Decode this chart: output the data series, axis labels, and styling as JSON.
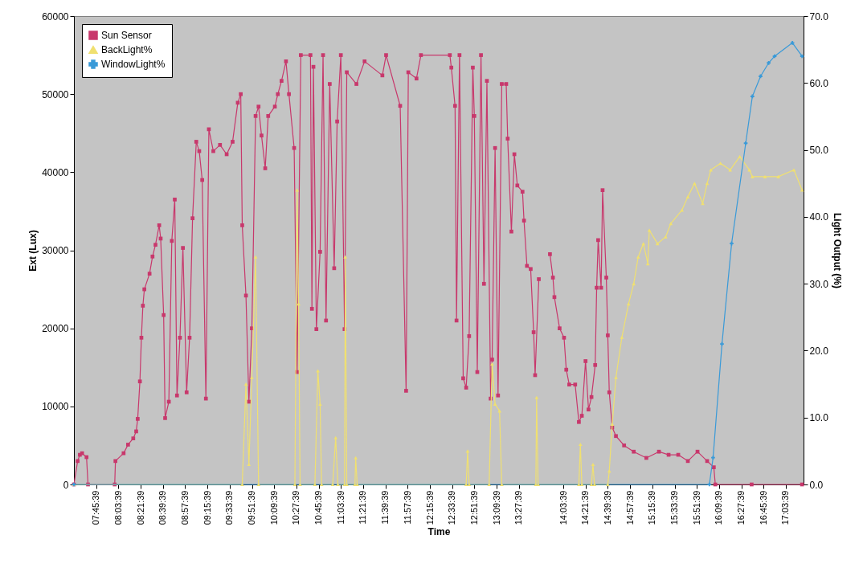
{
  "chart_data": {
    "type": "line",
    "xlabel": "Time",
    "ylabel": "Ext (Lux)",
    "y2label": "Light Output (%)",
    "legend": "top left",
    "grid": false,
    "xlim": [
      7.46,
      17.3
    ],
    "xticks": [
      {
        "value": 7.7608,
        "label": "07:45:39"
      },
      {
        "value": 8.0608,
        "label": "08:03:39"
      },
      {
        "value": 8.3608,
        "label": "08:21:39"
      },
      {
        "value": 8.6608,
        "label": "08:39:39"
      },
      {
        "value": 8.9608,
        "label": "08:57:39"
      },
      {
        "value": 9.2608,
        "label": "09:15:39"
      },
      {
        "value": 9.5608,
        "label": "09:33:39"
      },
      {
        "value": 9.8608,
        "label": "09:51:39"
      },
      {
        "value": 10.1608,
        "label": "10:09:39"
      },
      {
        "value": 10.4608,
        "label": "10:27:39"
      },
      {
        "value": 10.7608,
        "label": "10:45:39"
      },
      {
        "value": 11.0608,
        "label": "11:03:39"
      },
      {
        "value": 11.3608,
        "label": "11:21:39"
      },
      {
        "value": 11.6608,
        "label": "11:39:39"
      },
      {
        "value": 11.9608,
        "label": "11:57:39"
      },
      {
        "value": 12.2608,
        "label": "12:15:39"
      },
      {
        "value": 12.5608,
        "label": "12:33:39"
      },
      {
        "value": 12.8608,
        "label": "12:51:39"
      },
      {
        "value": 13.1608,
        "label": "13:09:39"
      },
      {
        "value": 13.4608,
        "label": "13:27:39"
      },
      {
        "value": 14.0608,
        "label": "14:03:39"
      },
      {
        "value": 14.3608,
        "label": "14:21:39"
      },
      {
        "value": 14.6608,
        "label": "14:39:39"
      },
      {
        "value": 14.9608,
        "label": "14:57:39"
      },
      {
        "value": 15.2608,
        "label": "15:15:39"
      },
      {
        "value": 15.5608,
        "label": "15:33:39"
      },
      {
        "value": 15.8608,
        "label": "15:51:39"
      },
      {
        "value": 16.1608,
        "label": "16:09:39"
      },
      {
        "value": 16.4608,
        "label": "16:27:39"
      },
      {
        "value": 16.7608,
        "label": "16:45:39"
      },
      {
        "value": 17.0608,
        "label": "17:03:39"
      }
    ],
    "ylim": [
      0,
      60000
    ],
    "yticks": [
      0,
      10000,
      20000,
      30000,
      40000,
      50000,
      60000
    ],
    "y2lim": [
      0,
      70
    ],
    "y2ticks": [
      {
        "value": 0,
        "label": "0.0"
      },
      {
        "value": 10,
        "label": "10.0"
      },
      {
        "value": 20,
        "label": "20.0"
      },
      {
        "value": 30,
        "label": "30.0"
      },
      {
        "value": 40,
        "label": "40.0"
      },
      {
        "value": 50,
        "label": "50.0"
      },
      {
        "value": 60,
        "label": "60.0"
      },
      {
        "value": 70,
        "label": "70.0"
      }
    ],
    "series": [
      {
        "name": "Sun Sensor",
        "color": "#c8386c",
        "marker": "square",
        "x": [
          7.46,
          7.51,
          7.54,
          7.57,
          7.63,
          7.65,
          8.01,
          8.02,
          8.13,
          8.19,
          8.26,
          8.3,
          8.32,
          8.35,
          8.37,
          8.39,
          8.41,
          8.48,
          8.52,
          8.56,
          8.61,
          8.63,
          8.67,
          8.69,
          8.74,
          8.78,
          8.82,
          8.85,
          8.89,
          8.93,
          8.98,
          9.02,
          9.06,
          9.11,
          9.15,
          9.19,
          9.24,
          9.28,
          9.34,
          9.43,
          9.52,
          9.6,
          9.67,
          9.71,
          9.73,
          9.78,
          9.82,
          9.86,
          9.91,
          9.95,
          9.99,
          10.04,
          10.08,
          10.17,
          10.21,
          10.26,
          10.32,
          10.36,
          10.43,
          10.47,
          10.52,
          10.65,
          10.67,
          10.69,
          10.73,
          10.78,
          10.82,
          10.86,
          10.91,
          10.97,
          11.01,
          11.06,
          11.11,
          11.14,
          11.27,
          11.38,
          11.62,
          11.67,
          11.86,
          11.94,
          11.97,
          12.08,
          12.14,
          12.53,
          12.55,
          12.6,
          12.62,
          12.66,
          12.71,
          12.75,
          12.79,
          12.84,
          12.86,
          12.9,
          12.95,
          12.99,
          13.03,
          13.08,
          13.1,
          13.14,
          13.18,
          13.23,
          13.29,
          13.31,
          13.36,
          13.4,
          13.44,
          13.51,
          13.53,
          13.57,
          13.62,
          13.66,
          13.68,
          13.73,
          13.8,
          13.88,
          13.92,
          13.94,
          14.01,
          14.07,
          14.1,
          14.14,
          14.22,
          14.27,
          14.31,
          14.36,
          14.4,
          14.44,
          14.49,
          14.51,
          14.53,
          14.57,
          14.59,
          14.64,
          14.66,
          14.68,
          14.72,
          14.77,
          14.88,
          15.01,
          15.18,
          15.35,
          15.48,
          15.61,
          15.74,
          15.87,
          16.0,
          16.09,
          16.11,
          16.6,
          17.28
        ],
        "values": [
          0,
          3000,
          3800,
          4000,
          3500,
          0,
          0,
          3000,
          4000,
          5100,
          5900,
          6800,
          8400,
          13200,
          18800,
          22900,
          25000,
          27000,
          29200,
          30700,
          33200,
          31500,
          21700,
          8500,
          10600,
          31200,
          36500,
          11400,
          18800,
          30300,
          11800,
          18800,
          34100,
          43900,
          42700,
          39000,
          11000,
          45500,
          42700,
          43500,
          42300,
          43900,
          48900,
          50000,
          33200,
          24200,
          10600,
          20000,
          47200,
          48400,
          44700,
          40500,
          47200,
          48400,
          50000,
          51700,
          54200,
          50000,
          43100,
          14400,
          55000,
          55000,
          22500,
          53500,
          19900,
          29800,
          55000,
          21000,
          51300,
          27700,
          46500,
          55000,
          19900,
          52800,
          51300,
          54200,
          52400,
          55000,
          48500,
          12000,
          52800,
          52000,
          55000,
          55000,
          53400,
          48500,
          21000,
          55000,
          13600,
          12400,
          19000,
          53400,
          47200,
          14400,
          55000,
          25700,
          51700,
          11000,
          16000,
          43100,
          11400,
          51300,
          51300,
          44300,
          32400,
          42300,
          38300,
          37500,
          33800,
          28000,
          27600,
          19500,
          14000,
          26300,
          null,
          29500,
          26500,
          24000,
          20000,
          18800,
          14700,
          12800,
          12800,
          8000,
          8800,
          15800,
          9600,
          11200,
          15300,
          25200,
          31300,
          25200,
          37700,
          26500,
          19100,
          11800,
          7300,
          6200,
          5000,
          4200,
          3400,
          4200,
          3800,
          3800,
          3000,
          4200,
          3000,
          2200,
          0,
          0,
          0
        ]
      },
      {
        "name": "BackLight%",
        "color": "#f0e070",
        "marker": "triangle",
        "axis": "y2",
        "x": [
          7.46,
          9.73,
          9.78,
          9.82,
          9.86,
          9.91,
          9.95,
          10.44,
          10.47,
          10.49,
          10.51,
          10.71,
          10.75,
          10.78,
          10.8,
          10.95,
          10.99,
          11.02,
          11.11,
          11.12,
          11.14,
          11.25,
          11.26,
          11.28,
          12.75,
          12.77,
          12.79,
          13.06,
          13.1,
          13.14,
          13.2,
          13.23,
          13.69,
          13.7,
          13.72,
          14.27,
          14.29,
          14.31,
          14.44,
          14.46,
          14.48,
          14.66,
          14.68,
          14.72,
          14.77,
          14.85,
          14.94,
          15.01,
          15.07,
          15.14,
          15.2,
          15.22,
          15.33,
          15.44,
          15.51,
          15.66,
          15.74,
          15.83,
          15.94,
          16.0,
          16.05,
          16.18,
          16.31,
          16.44,
          16.57,
          16.61,
          16.78,
          16.96,
          17.17,
          17.28
        ],
        "values": [
          0,
          0,
          15,
          3,
          16,
          34,
          0,
          0,
          44,
          27,
          0,
          0,
          17,
          12,
          0,
          0,
          7,
          0,
          0,
          34,
          0,
          0,
          4,
          0,
          0,
          5,
          0,
          0,
          18,
          12,
          11,
          0,
          0,
          13,
          0,
          0,
          6,
          0,
          0,
          3,
          0,
          0,
          2,
          9,
          16,
          22,
          27,
          30,
          34,
          36,
          33,
          38,
          36,
          37,
          39,
          41,
          43,
          45,
          42,
          45,
          47,
          48,
          47,
          49,
          47,
          46,
          46,
          46,
          47,
          44
        ]
      },
      {
        "name": "WindowLight%",
        "color": "#3a9ad8",
        "marker": "cross",
        "axis": "y2",
        "x": [
          7.46,
          16.03,
          16.08,
          16.2,
          16.33,
          16.52,
          16.61,
          16.72,
          16.83,
          16.91,
          17.15,
          17.28
        ],
        "values": [
          0,
          0,
          4,
          21,
          36,
          51,
          58,
          61,
          63,
          64,
          66,
          64
        ]
      }
    ]
  }
}
